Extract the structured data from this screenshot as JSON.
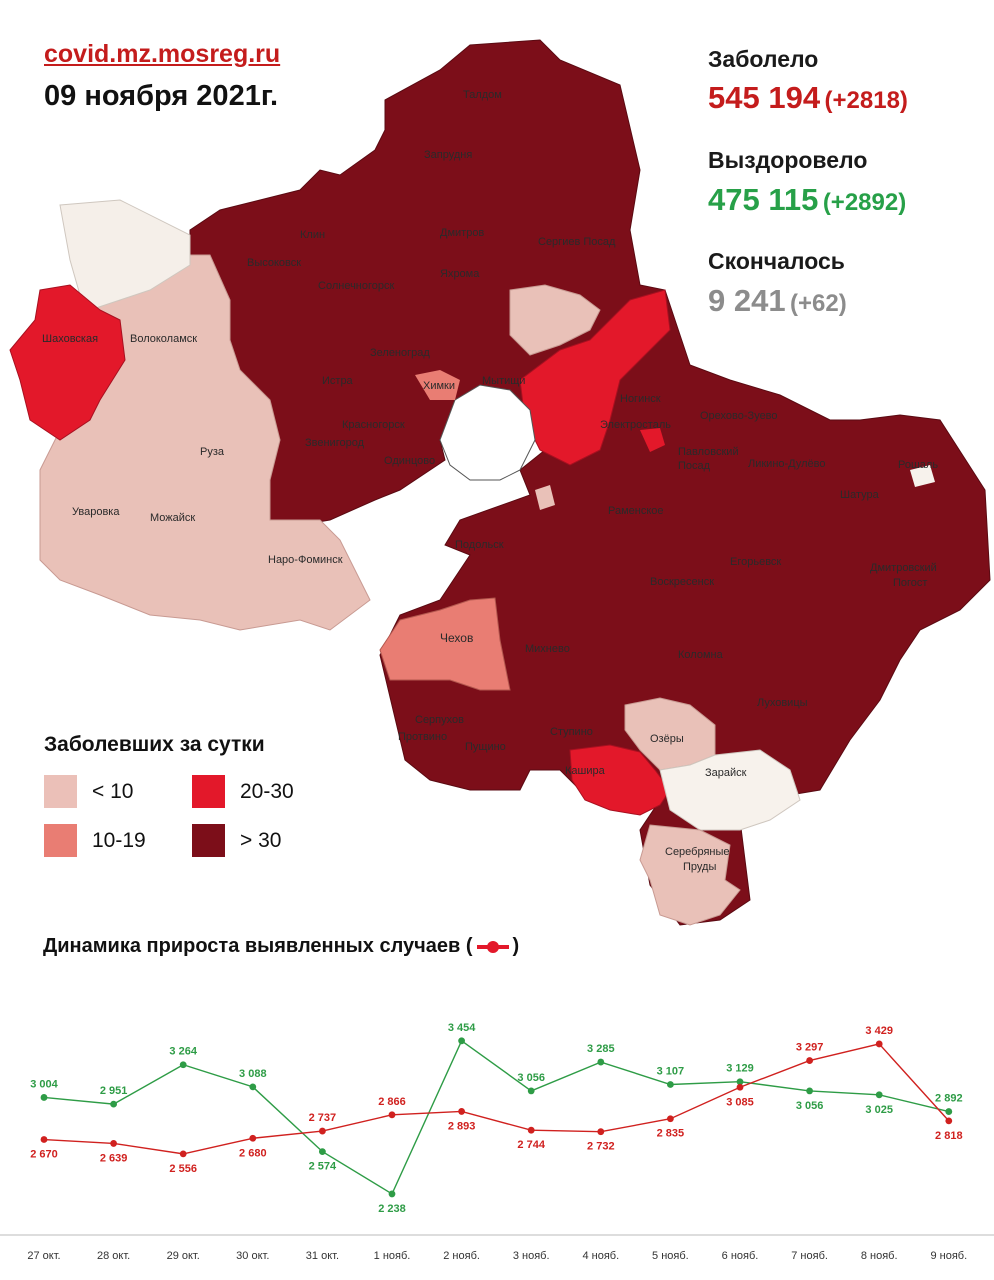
{
  "header": {
    "source": "covid.mz.mosreg.ru",
    "date": "09 ноября 2021г."
  },
  "stats": {
    "infected": {
      "label": "Заболело",
      "value": "545 194",
      "delta": "(+2818)",
      "color": "#c41c1c"
    },
    "recovered": {
      "label": "Выздоровело",
      "value": "475 115",
      "delta": "(+2892)",
      "color": "#27a048"
    },
    "deceased": {
      "label": "Скончалось",
      "value": "9 241",
      "delta": "(+62)",
      "color": "#8c8c8c"
    }
  },
  "map": {
    "labels": {
      "taldom": "Талдом",
      "zaprudnya": "Запрудня",
      "klin": "Клин",
      "dmitrov": "Дмитров",
      "sergiev": "Сергиев Посад",
      "vysokovsk": "Высоковск",
      "yakhroma": "Яхрома",
      "solnechnogorsk": "Солнечногорск",
      "zelenograd": "Зеленоград",
      "shakhovskaya": "Шаховская",
      "volokolamsk": "Волоколамск",
      "istra": "Истра",
      "khimki": "Химки",
      "mytishchi": "Мытищи",
      "noginsk": "Ногинск",
      "orekhovo": "Орехово-Зуево",
      "krasnogorsk": "Красногорск",
      "elektrostal": "Электросталь",
      "pavlovsky": "Павловский",
      "posad": "Посад",
      "likino": "Ликино-Дулёво",
      "roshal": "Рошаль",
      "zvenigorod": "Звенигород",
      "odintsovo": "Одинцово",
      "ruza": "Руза",
      "shatura": "Шатура",
      "uvarovka": "Уваровка",
      "mozhaisk": "Можайск",
      "ramenskoe": "Раменское",
      "lytkarino": "Лыткарино",
      "naro": "Наро-Фоминск",
      "podolsk": "Подольск",
      "egorievsk": "Егорьевск",
      "voskresensk": "Воскресенск",
      "dmitrovsky": "Дмитровский",
      "pogost": "Погост",
      "chekhov": "Чехов",
      "mikhnevo": "Михнево",
      "kolomna": "Коломна",
      "serpukhov": "Серпухов",
      "lukhovitsy": "Луховицы",
      "stupino": "Ступино",
      "pushchino": "Пущино",
      "protvino": "Протвино",
      "ozery": "Озёры",
      "kashira": "Кашира",
      "zaraisk": "Зарайск",
      "serebryanye": "Серебряные",
      "prudy": "Пруды"
    }
  },
  "legend": {
    "title": "Заболевших за сутки",
    "items": [
      {
        "label": "< 10",
        "color": "#ebc0b8"
      },
      {
        "label": "20-30",
        "color": "#e3182a"
      },
      {
        "label": "10-19",
        "color": "#e97d73"
      },
      {
        "label": "> 30",
        "color": "#7c0e19"
      }
    ]
  },
  "chart_title": "Динамика прироста выявленных случаев (",
  "chart_title_end": ")",
  "chart_data": {
    "type": "line",
    "categories": [
      "27 окт.",
      "28 окт.",
      "29 окт.",
      "30 окт.",
      "31 окт.",
      "1 нояб.",
      "2 нояб.",
      "3 нояб.",
      "4 нояб.",
      "5 нояб.",
      "6 нояб.",
      "7 нояб.",
      "8 нояб.",
      "9 нояб."
    ],
    "series": [
      {
        "color": "#2e9c46",
        "values": [
          3004,
          2951,
          3264,
          3088,
          2574,
          2238,
          3454,
          3056,
          3285,
          3107,
          3129,
          3056,
          3025,
          2892
        ],
        "labels": [
          "3 004",
          "2 951",
          "3 264",
          "3 088",
          "2 574",
          "2 238",
          "3 454",
          "3 056",
          "3 285",
          "3 107",
          "3 129",
          "3 056",
          "3 025",
          "2 892"
        ]
      },
      {
        "color": "#d0211f",
        "values": [
          2670,
          2639,
          2556,
          2680,
          2737,
          2866,
          2893,
          2744,
          2732,
          2835,
          3085,
          3297,
          3429,
          2818
        ],
        "labels": [
          "2 670",
          "2 639",
          "2 556",
          "2 680",
          "2 737",
          "2 866",
          "2 893",
          "2 744",
          "2 732",
          "2 835",
          "3 085",
          "3 297",
          "3 429",
          "2 818"
        ]
      }
    ],
    "ylim": [
      2150,
      3500
    ]
  }
}
